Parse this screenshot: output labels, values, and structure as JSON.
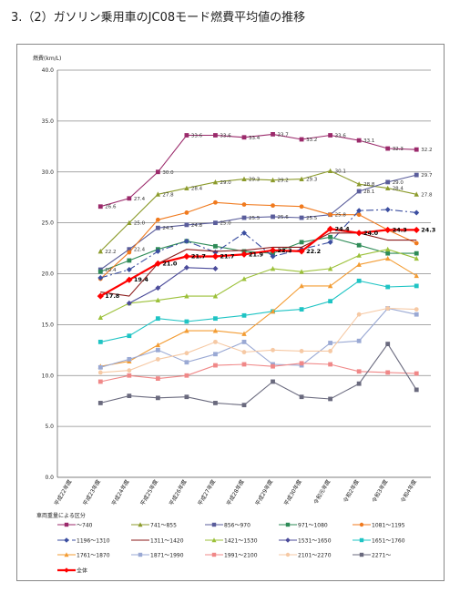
{
  "page": {
    "title": "3.（2）ガソリン乗用車のJC08モード燃費平均値の推移"
  },
  "chart_data": {
    "type": "line",
    "ylabel": "燃費(km/L)",
    "xlabel": "",
    "ylim": [
      0,
      40
    ],
    "yticks": [
      "0.0",
      "5.0",
      "10.0",
      "15.0",
      "20.0",
      "25.0",
      "30.0",
      "35.0",
      "40.0"
    ],
    "grid": true,
    "legend_title": "車両重量による区分",
    "legend_position": "bottom",
    "categories": [
      "平成22年度",
      "平成23年度",
      "平成24年度",
      "平成25年度",
      "平成26年度",
      "平成27年度",
      "平成28年度",
      "平成29年度",
      "平成30年度",
      "令和元年度",
      "令和2年度",
      "令和3年度",
      "令和4年度"
    ],
    "series": [
      {
        "name": "～740",
        "color": "#9b2a6b",
        "marker": "square",
        "dash": "",
        "values": [
          null,
          26.6,
          27.4,
          30.0,
          33.6,
          33.6,
          33.4,
          33.7,
          33.2,
          33.6,
          33.1,
          32.3,
          32.2
        ]
      },
      {
        "name": "741～855",
        "color": "#8c9b2c",
        "marker": "triangle",
        "dash": "",
        "values": [
          null,
          22.2,
          25.0,
          27.8,
          28.4,
          29.0,
          29.3,
          29.2,
          29.3,
          30.1,
          28.8,
          28.4,
          27.8
        ]
      },
      {
        "name": "856～970",
        "color": "#5a5d9b",
        "marker": "square",
        "dash": "",
        "values": [
          null,
          20.4,
          22.4,
          24.5,
          24.8,
          25.0,
          25.5,
          25.6,
          25.5,
          25.8,
          28.1,
          29.0,
          29.7
        ]
      },
      {
        "name": "971～1080",
        "color": "#2e8b57",
        "marker": "square",
        "dash": "",
        "values": [
          null,
          20.2,
          21.3,
          22.4,
          23.2,
          22.7,
          22.2,
          22.0,
          23.1,
          23.6,
          22.8,
          22.0,
          22.0
        ]
      },
      {
        "name": "1081～1195",
        "color": "#f07a1e",
        "marker": "circle",
        "dash": "",
        "values": [
          null,
          19.5,
          22.1,
          25.3,
          26.0,
          27.0,
          26.8,
          26.7,
          26.6,
          25.8,
          25.8,
          24.3,
          23.0
        ]
      },
      {
        "name": "1196～1310",
        "color": "#3b4ea0",
        "marker": "diamond",
        "dash": "8 3 2 3",
        "values": [
          null,
          19.6,
          20.4,
          22.2,
          23.2,
          22.1,
          24.0,
          21.7,
          22.4,
          23.1,
          26.2,
          26.3,
          26.0
        ]
      },
      {
        "name": "1311～1420",
        "color": "#8b1a1a",
        "marker": "none",
        "dash": "",
        "values": [
          null,
          18.2,
          17.8,
          21.0,
          22.4,
          22.2,
          22.3,
          22.6,
          22.6,
          24.0,
          24.0,
          23.3,
          23.3
        ]
      },
      {
        "name": "1421～1530",
        "color": "#9cc13a",
        "marker": "triangle",
        "dash": "",
        "values": [
          null,
          15.7,
          17.1,
          17.4,
          17.8,
          17.8,
          19.5,
          20.5,
          20.2,
          20.5,
          21.8,
          22.4,
          21.5
        ]
      },
      {
        "name": "1531～1650",
        "color": "#4b4b9a",
        "marker": "diamond",
        "dash": "",
        "values": [
          null,
          null,
          17.1,
          18.6,
          20.6,
          20.5,
          null,
          null,
          null,
          null,
          null,
          null,
          null
        ]
      },
      {
        "name": "1651～1760",
        "color": "#1fc4c4",
        "marker": "square",
        "dash": "",
        "values": [
          null,
          13.3,
          13.9,
          15.6,
          15.3,
          15.6,
          15.9,
          16.3,
          16.5,
          17.3,
          19.3,
          18.7,
          18.8
        ]
      },
      {
        "name": "1761～1870",
        "color": "#f39c33",
        "marker": "triangle",
        "dash": "",
        "values": [
          null,
          10.9,
          11.4,
          13.0,
          14.4,
          14.4,
          14.1,
          16.3,
          18.8,
          18.8,
          20.9,
          21.5,
          19.8
        ]
      },
      {
        "name": "1871～1990",
        "color": "#9aa9d4",
        "marker": "square",
        "dash": "",
        "values": [
          null,
          10.8,
          11.6,
          12.5,
          11.3,
          12.1,
          13.3,
          11.1,
          11.0,
          13.2,
          13.4,
          16.6,
          16.0
        ]
      },
      {
        "name": "1991～2100",
        "color": "#f08888",
        "marker": "square",
        "dash": "",
        "values": [
          null,
          9.4,
          10.0,
          9.7,
          10.0,
          11.0,
          11.1,
          10.9,
          11.2,
          11.1,
          10.4,
          10.3,
          10.2
        ]
      },
      {
        "name": "2101～2270",
        "color": "#f6c9a4",
        "marker": "circle",
        "dash": "",
        "values": [
          null,
          10.3,
          10.5,
          11.6,
          12.2,
          13.3,
          12.3,
          12.5,
          12.4,
          12.4,
          16.0,
          16.6,
          16.5
        ]
      },
      {
        "name": "2271～",
        "color": "#6a6a7e",
        "marker": "square",
        "dash": "",
        "values": [
          null,
          7.3,
          8.0,
          7.8,
          7.9,
          7.3,
          7.1,
          9.4,
          7.9,
          7.7,
          9.2,
          13.1,
          8.6
        ]
      },
      {
        "name": "全体",
        "color": "#ff0000",
        "marker": "diamond",
        "dash": "",
        "width": 2.2,
        "values": [
          null,
          17.8,
          19.4,
          21.0,
          21.7,
          21.7,
          21.9,
          22.3,
          22.2,
          24.4,
          24.0,
          24.3,
          24.3
        ]
      }
    ],
    "data_labels": [
      {
        "series": "～740",
        "labels": [
          "26.6",
          "27.4",
          "30.0",
          "33.6",
          "33.6",
          "33.4",
          "33.7",
          "33.2",
          "33.6",
          "33.1",
          "32.3",
          "32.2"
        ]
      },
      {
        "series": "741～855",
        "labels": [
          "22.2",
          "25.0",
          "27.8",
          "28.4",
          "29.0",
          "29.3",
          "29.2",
          "29.3",
          "30.1",
          "28.8",
          "28.4",
          "27.8"
        ]
      },
      {
        "series": "856～970",
        "labels": [
          "20.4",
          "22.4",
          "24.5",
          "24.8",
          "25.0",
          "25.5",
          "25.6",
          "25.5",
          "25.8",
          "28.1",
          "29.0",
          "29.7"
        ]
      },
      {
        "series": "全体",
        "labels": [
          "17.8",
          "19.4",
          "21.0",
          "21.7",
          "21.7",
          "21.9",
          "22.3",
          "22.2",
          "24.4",
          "24.0",
          "24.3",
          "24.3"
        ]
      }
    ]
  }
}
